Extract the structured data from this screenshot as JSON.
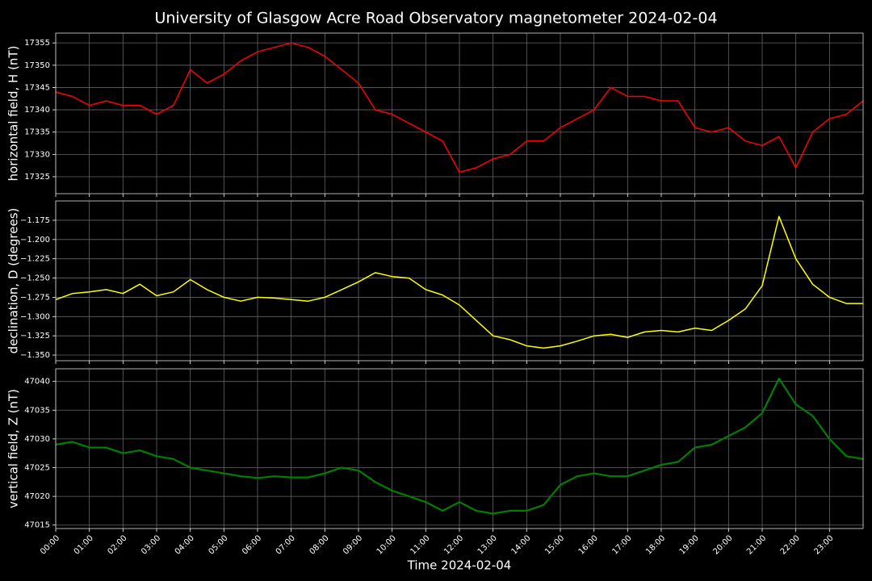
{
  "chart_data": [
    {
      "type": "line",
      "title": "University of Glasgow Acre Road Observatory magnetometer 2024-02-04",
      "ylabel": "horizontal field, H (nT)",
      "color": "#ff0000",
      "grid": true,
      "x": [
        0,
        0.5,
        1,
        1.5,
        2,
        2.5,
        3,
        3.5,
        4,
        4.5,
        5,
        5.5,
        6,
        6.5,
        7,
        7.5,
        8,
        8.5,
        9,
        9.5,
        10,
        10.5,
        11,
        11.5,
        12,
        12.5,
        13,
        13.5,
        14,
        14.5,
        15,
        15.5,
        16,
        16.5,
        17,
        17.5,
        18,
        18.5,
        19,
        19.5,
        20,
        20.5,
        21,
        21.5,
        22,
        22.5,
        23,
        23.5,
        24
      ],
      "values": [
        17344,
        17343,
        17341,
        17342,
        17341,
        17341,
        17339,
        17341,
        17349,
        17346,
        17348,
        17351,
        17353,
        17354,
        17355,
        17354,
        17352,
        17349,
        17346,
        17340,
        17339,
        17337,
        17335,
        17333,
        17326,
        17327,
        17329,
        17330,
        17333,
        17333,
        17336,
        17338,
        17340,
        17345,
        17343,
        17343,
        17342,
        17342,
        17336,
        17335,
        17336,
        17333,
        17332,
        17334,
        17327,
        17335,
        17338,
        17339,
        17342
      ],
      "xlim": [
        0,
        24
      ],
      "ylim": [
        17321.2,
        17357.2
      ],
      "yticks": [
        17325,
        17330,
        17335,
        17340,
        17345,
        17350,
        17355
      ]
    },
    {
      "type": "line",
      "ylabel": "declination, D (degrees)",
      "color": "#ffff00",
      "grid": true,
      "x": [
        0,
        0.5,
        1,
        1.5,
        2,
        2.5,
        3,
        3.5,
        4,
        4.5,
        5,
        5.5,
        6,
        6.5,
        7,
        7.5,
        8,
        8.5,
        9,
        9.5,
        10,
        10.5,
        11,
        11.5,
        12,
        12.5,
        13,
        13.5,
        14,
        14.5,
        15,
        15.5,
        16,
        16.5,
        17,
        17.5,
        18,
        18.5,
        19,
        19.5,
        20,
        20.5,
        21,
        21.5,
        22,
        22.5,
        23,
        23.5,
        24
      ],
      "values": [
        -1.278,
        -1.27,
        -1.268,
        -1.265,
        -1.27,
        -1.258,
        -1.273,
        -1.268,
        -1.252,
        -1.265,
        -1.275,
        -1.28,
        -1.275,
        -1.276,
        -1.278,
        -1.28,
        -1.275,
        -1.265,
        -1.255,
        -1.243,
        -1.248,
        -1.25,
        -1.265,
        -1.272,
        -1.285,
        -1.305,
        -1.325,
        -1.33,
        -1.338,
        -1.341,
        -1.338,
        -1.332,
        -1.325,
        -1.323,
        -1.327,
        -1.32,
        -1.318,
        -1.32,
        -1.315,
        -1.318,
        -1.305,
        -1.29,
        -1.26,
        -1.17,
        -1.225,
        -1.258,
        -1.275,
        -1.283,
        -1.283
      ],
      "xlim": [
        0,
        24
      ],
      "ylim": [
        -1.3573,
        -1.1499
      ],
      "yticks": [
        {
          "value": -1.35,
          "label": "−1.350"
        },
        {
          "value": -1.325,
          "label": "−1.325"
        },
        {
          "value": -1.3,
          "label": "−1.300"
        },
        {
          "value": -1.275,
          "label": "−1.275"
        },
        {
          "value": -1.25,
          "label": "−1.250"
        },
        {
          "value": -1.225,
          "label": "−1.225"
        },
        {
          "value": -1.2,
          "label": "−1.200"
        },
        {
          "value": -1.175,
          "label": "−1.175"
        }
      ]
    },
    {
      "type": "line",
      "ylabel": "vertical field, Z (nT)",
      "xlabel": "Time 2024-02-04",
      "color": "#008000",
      "grid": true,
      "x": [
        0,
        0.5,
        1,
        1.5,
        2,
        2.5,
        3,
        3.5,
        4,
        4.5,
        5,
        5.5,
        6,
        6.5,
        7,
        7.5,
        8,
        8.5,
        9,
        9.5,
        10,
        10.5,
        11,
        11.5,
        12,
        12.5,
        13,
        13.5,
        14,
        14.5,
        15,
        15.5,
        16,
        16.5,
        17,
        17.5,
        18,
        18.5,
        19,
        19.5,
        20,
        20.5,
        21,
        21.5,
        22,
        22.5,
        23,
        23.5,
        24
      ],
      "values": [
        47029,
        47029.5,
        47028.5,
        47028.5,
        47027.5,
        47028,
        47027,
        47026.5,
        47025,
        47024.5,
        47024,
        47023.5,
        47023.2,
        47023.5,
        47023.3,
        47023.3,
        47024,
        47025,
        47024.5,
        47022.5,
        47021,
        47020,
        47019,
        47017.5,
        47019,
        47017.5,
        47017,
        47017.5,
        47017.5,
        47018.5,
        47022,
        47023.5,
        47024,
        47023.5,
        47023.5,
        47024.5,
        47025.5,
        47026,
        47028.5,
        47029,
        47030.5,
        47032,
        47034.5,
        47040.5,
        47036,
        47034,
        47030,
        47027,
        47026.5
      ],
      "xlim": [
        0,
        24
      ],
      "ylim": [
        47014.4,
        47042.2
      ],
      "yticks": [
        47015,
        47020,
        47025,
        47030,
        47035,
        47040
      ],
      "xticks": [
        {
          "value": 0,
          "label": "00:00"
        },
        {
          "value": 1,
          "label": "01:00"
        },
        {
          "value": 2,
          "label": "02:00"
        },
        {
          "value": 3,
          "label": "03:00"
        },
        {
          "value": 4,
          "label": "04:00"
        },
        {
          "value": 5,
          "label": "05:00"
        },
        {
          "value": 6,
          "label": "06:00"
        },
        {
          "value": 7,
          "label": "07:00"
        },
        {
          "value": 8,
          "label": "08:00"
        },
        {
          "value": 9,
          "label": "09:00"
        },
        {
          "value": 10,
          "label": "10:00"
        },
        {
          "value": 11,
          "label": "11:00"
        },
        {
          "value": 12,
          "label": "12:00"
        },
        {
          "value": 13,
          "label": "13:00"
        },
        {
          "value": 14,
          "label": "14:00"
        },
        {
          "value": 15,
          "label": "15:00"
        },
        {
          "value": 16,
          "label": "16:00"
        },
        {
          "value": 17,
          "label": "17:00"
        },
        {
          "value": 18,
          "label": "18:00"
        },
        {
          "value": 19,
          "label": "19:00"
        },
        {
          "value": 20,
          "label": "20:00"
        },
        {
          "value": 21,
          "label": "21:00"
        },
        {
          "value": 22,
          "label": "22:00"
        },
        {
          "value": 23,
          "label": "23:00"
        }
      ]
    }
  ]
}
